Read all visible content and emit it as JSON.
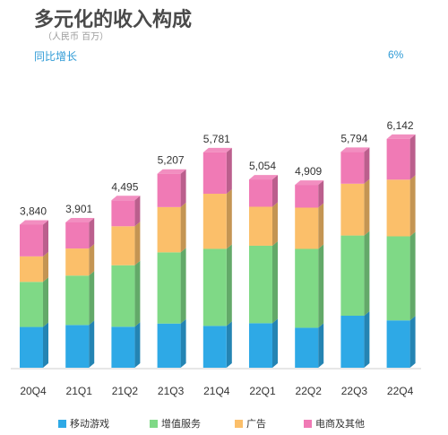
{
  "title": "多元化的收入构成",
  "subtitle": "（人民币 百万）",
  "yoy": {
    "label": "同比增长",
    "value": "6%"
  },
  "chart_data": {
    "type": "bar",
    "stacked": true,
    "categories": [
      "20Q4",
      "21Q1",
      "21Q2",
      "21Q3",
      "21Q4",
      "22Q1",
      "22Q2",
      "22Q3",
      "22Q4"
    ],
    "totals": [
      "3,840",
      "3,901",
      "4,495",
      "5,207",
      "5,781",
      "5,054",
      "4,909",
      "5,794",
      "6,142"
    ],
    "series": [
      {
        "name": "移动游戏",
        "color": "#2ea9e6",
        "values": [
          1094,
          1147,
          1100,
          1186,
          1123,
          1195,
          1073,
          1396,
          1271
        ]
      },
      {
        "name": "增值服务",
        "color": "#7fd986",
        "values": [
          1210,
          1326,
          1651,
          1911,
          2068,
          2080,
          2117,
          2153,
          2256
        ]
      },
      {
        "name": "广告",
        "color": "#fbbf6a",
        "values": [
          685,
          727,
          1046,
          1215,
          1479,
          1046,
          1107,
          1391,
          1521
        ]
      },
      {
        "name": "电商及其他",
        "color": "#f07ab5",
        "values": [
          851,
          701,
          698,
          895,
          1111,
          733,
          612,
          854,
          1094
        ]
      }
    ],
    "ylim": [
      0,
      6500
    ],
    "legend_position": "bottom"
  }
}
